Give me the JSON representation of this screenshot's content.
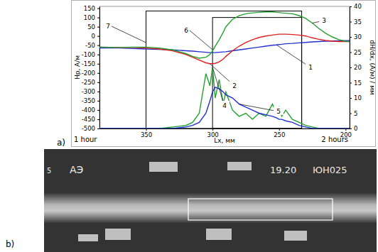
{
  "chart_data": {
    "type": "line",
    "panel_label": "a)",
    "x_label": "Lx, мм",
    "y_label": "Hp, A/м",
    "y2_label": "dH/dx, (A/м) / мм",
    "annotations": [
      "1 hour",
      "2 hours"
    ],
    "x": [
      385,
      370,
      360,
      350,
      340,
      330,
      320,
      315,
      310,
      305,
      302,
      300,
      298,
      295,
      292,
      290,
      285,
      280,
      275,
      270,
      265,
      260,
      255,
      252,
      250,
      248,
      245,
      240,
      235,
      230,
      225,
      220,
      215,
      210,
      205,
      200,
      197
    ],
    "xlim": [
      385,
      197
    ],
    "xticks": [
      350,
      300,
      250,
      200
    ],
    "ylim": [
      -500,
      160
    ],
    "yticks": [
      -500,
      -450,
      -400,
      -350,
      -300,
      -250,
      -200,
      -150,
      -100,
      -50,
      0,
      50,
      100,
      150
    ],
    "y2lim": [
      0,
      40
    ],
    "y2ticks": [
      0,
      5,
      10,
      15,
      20,
      25,
      30,
      35,
      40
    ],
    "grid": false,
    "series": [
      {
        "name": "1",
        "color": "#2030d0",
        "values": [
          -65,
          -65,
          -68,
          -70,
          -72,
          -75,
          -80,
          -82,
          -85,
          -88,
          -90,
          -90,
          -90,
          -88,
          -86,
          -85,
          -80,
          -75,
          -70,
          -65,
          -60,
          -55,
          -50,
          -48,
          -46,
          -45,
          -42,
          -40,
          -37,
          -35,
          -32,
          -30,
          -28,
          -27,
          -26,
          -25,
          -25
        ]
      },
      {
        "name": "2",
        "color": "#e02020",
        "values": [
          -60,
          -62,
          -62,
          -65,
          -70,
          -80,
          -100,
          -115,
          -130,
          -145,
          -150,
          -150,
          -148,
          -140,
          -125,
          -110,
          -80,
          -55,
          -35,
          -20,
          -8,
          0,
          5,
          8,
          10,
          10,
          10,
          8,
          5,
          0,
          -10,
          -18,
          -24,
          -28,
          -30,
          -30,
          -30
        ]
      },
      {
        "name": "3",
        "color": "#22a030",
        "values": [
          -60,
          -62,
          -60,
          -60,
          -65,
          -75,
          -95,
          -110,
          -120,
          -115,
          -100,
          -80,
          -55,
          -20,
          20,
          50,
          90,
          110,
          120,
          125,
          128,
          130,
          130,
          128,
          127,
          125,
          123,
          120,
          110,
          95,
          70,
          40,
          15,
          -5,
          -20,
          -28,
          -30
        ]
      },
      {
        "name": "4",
        "color": "#22a030",
        "axis": "y2",
        "values": [
          0,
          0,
          0,
          0,
          0,
          0.5,
          1,
          2,
          5,
          18,
          14,
          20,
          10,
          16,
          8,
          12,
          6,
          4,
          5,
          3,
          5,
          4,
          8,
          5,
          7,
          4,
          6,
          3,
          2,
          1,
          0.5,
          0,
          0,
          0,
          0,
          0,
          0
        ]
      },
      {
        "name": "5",
        "color": "#2030d0",
        "axis": "y2",
        "values": [
          0,
          0,
          0,
          0,
          0,
          0,
          0.5,
          1,
          2,
          5,
          9,
          12,
          13.5,
          13,
          12,
          11,
          10,
          8,
          7,
          6,
          5,
          4.5,
          4,
          3.5,
          3,
          3,
          2.5,
          2,
          1,
          0.5,
          0,
          0,
          0,
          0,
          0,
          0,
          0
        ]
      }
    ],
    "zones": [
      {
        "label": "7",
        "from": 350,
        "to": 233,
        "top": 135
      },
      {
        "label": "6",
        "from": 300,
        "to": 233,
        "top": 100
      }
    ]
  },
  "photo": {
    "panel_label": "b)",
    "texts": [
      "5",
      "АЭ",
      "19.20",
      "ЮН025"
    ]
  }
}
